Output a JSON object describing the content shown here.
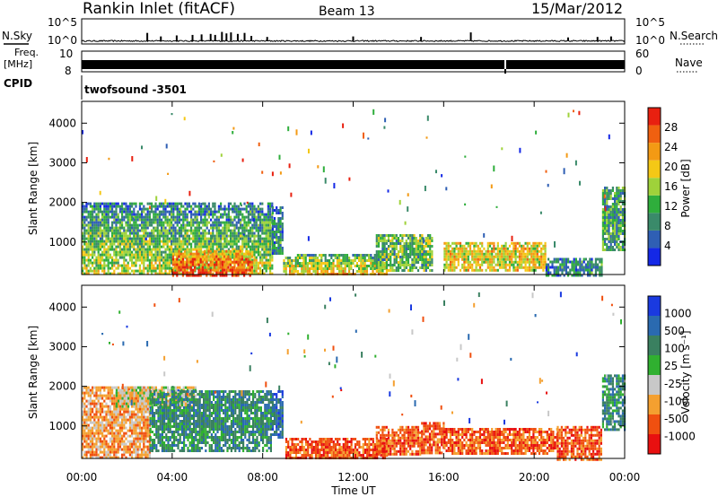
{
  "header": {
    "title": "Rankin Inlet (fitACF)",
    "beam": "Beam 13",
    "date": "15/Mar/2012"
  },
  "labels": {
    "nsky": "N.Sky",
    "nsearch": "N.Search",
    "freq_top": "Freq.",
    "freq_unit": "[MHz]",
    "nave": "Nave",
    "cpid": "CPID",
    "cpid_value": "twofsound  -3501",
    "x_axis_title": "Time UT"
  },
  "colors": {
    "power": [
      "#1428e6",
      "#2f5fb4",
      "#3a8a6a",
      "#2fae3c",
      "#9fd23a",
      "#f4c816",
      "#f39a14",
      "#f06010",
      "#e82010"
    ],
    "velocity": [
      "#e81010",
      "#f05010",
      "#f4a030",
      "#c8c8c8",
      "#30b030",
      "#3a8060",
      "#2a6ab0",
      "#1a3ae0"
    ]
  },
  "chart_data": [
    {
      "type": "line",
      "name": "sky-noise-panel",
      "left_axis": {
        "label": "N.Sky",
        "ticks": [
          "10^5",
          "10^0"
        ]
      },
      "right_axis": {
        "label": "N.Search",
        "ticks": [
          "10^5",
          "10^0"
        ]
      },
      "x_range_hours": [
        0,
        24
      ],
      "baseline_log10": 0.6,
      "spikes": [
        {
          "t": 2.9,
          "v": 1.6
        },
        {
          "t": 3.5,
          "v": 0.9
        },
        {
          "t": 4.2,
          "v": 1.1
        },
        {
          "t": 4.9,
          "v": 1.2
        },
        {
          "t": 5.3,
          "v": 1.3
        },
        {
          "t": 5.7,
          "v": 1.4
        },
        {
          "t": 5.9,
          "v": 1.2
        },
        {
          "t": 6.2,
          "v": 1.8
        },
        {
          "t": 6.4,
          "v": 1.5
        },
        {
          "t": 6.6,
          "v": 1.7
        },
        {
          "t": 6.9,
          "v": 1.4
        },
        {
          "t": 7.2,
          "v": 1.6
        },
        {
          "t": 7.5,
          "v": 1.0
        },
        {
          "t": 8.2,
          "v": 0.8
        },
        {
          "t": 12.0,
          "v": 0.9
        },
        {
          "t": 15.0,
          "v": 0.8
        },
        {
          "t": 17.2,
          "v": 1.7
        },
        {
          "t": 21.5,
          "v": 0.7
        },
        {
          "t": 22.8,
          "v": 0.8
        },
        {
          "t": 23.4,
          "v": 0.9
        }
      ]
    },
    {
      "type": "area",
      "name": "frequency-nave-panel",
      "left_axis": {
        "label": "Freq. [MHz]",
        "ticks": [
          "10",
          "8"
        ]
      },
      "right_axis": {
        "label": "Nave",
        "ticks": [
          "60",
          "0"
        ]
      },
      "x_range_hours": [
        0,
        24
      ],
      "frequency_mhz_band": [
        8.9,
        9.9
      ],
      "gaps_hours": [
        18.7
      ]
    },
    {
      "type": "heatmap",
      "name": "power-panel",
      "ylabel": "Slant Range [km]",
      "ylim": [
        180,
        4550
      ],
      "yticks": [
        1000,
        2000,
        3000,
        4000
      ],
      "x_range_hours": [
        0,
        24
      ],
      "colorbar": {
        "label": "Power [dB]",
        "ticks": [
          "4",
          "8",
          "12",
          "16",
          "20",
          "24",
          "28"
        ],
        "range": [
          0,
          30
        ]
      },
      "regions": [
        {
          "t": [
            0.0,
            8.4
          ],
          "r": [
            180,
            2000
          ],
          "mean": 12,
          "hot_low": true
        },
        {
          "t": [
            4.0,
            7.5
          ],
          "r": [
            180,
            800
          ],
          "mean": 24,
          "hot_low": true
        },
        {
          "t": [
            8.4,
            8.9
          ],
          "r": [
            700,
            1900
          ],
          "mean": 8
        },
        {
          "t": [
            8.9,
            13.5
          ],
          "r": [
            180,
            700
          ],
          "mean": 16,
          "hot_low": true
        },
        {
          "t": [
            13.0,
            15.5
          ],
          "r": [
            300,
            1200
          ],
          "mean": 12
        },
        {
          "t": [
            16.0,
            20.5
          ],
          "r": [
            300,
            1000
          ],
          "mean": 18
        },
        {
          "t": [
            20.5,
            23.0
          ],
          "r": [
            180,
            600
          ],
          "mean": 8
        },
        {
          "t": [
            23.0,
            24.0
          ],
          "r": [
            800,
            2400
          ],
          "mean": 10
        }
      ]
    },
    {
      "type": "heatmap",
      "name": "velocity-panel",
      "ylabel": "Slant Range [km]",
      "ylim": [
        180,
        4550
      ],
      "yticks": [
        1000,
        2000,
        3000,
        4000
      ],
      "x_range_hours": [
        0,
        24
      ],
      "xticks": [
        "00:00",
        "04:00",
        "08:00",
        "12:00",
        "16:00",
        "20:00",
        "00:00"
      ],
      "xlabel": "Time UT",
      "colorbar": {
        "label": "Velocity [m s⁻¹]",
        "ticks": [
          "-1000",
          "-500",
          "-100",
          "-25",
          "25",
          "100",
          "500",
          "1000"
        ]
      },
      "regions": [
        {
          "t": [
            0.0,
            3.0
          ],
          "r": [
            180,
            2000
          ],
          "mean_class": 2
        },
        {
          "t": [
            1.5,
            5.0
          ],
          "r": [
            1500,
            2000
          ],
          "mean_class": 3
        },
        {
          "t": [
            3.0,
            8.4
          ],
          "r": [
            400,
            1900
          ],
          "mean_class": 5
        },
        {
          "t": [
            8.4,
            8.9
          ],
          "r": [
            700,
            1900
          ],
          "mean_class": 6
        },
        {
          "t": [
            9.0,
            13.5
          ],
          "r": [
            180,
            700
          ],
          "mean_class": 1
        },
        {
          "t": [
            13.0,
            15.0
          ],
          "r": [
            300,
            1000
          ],
          "mean_class": 1
        },
        {
          "t": [
            15.0,
            16.0
          ],
          "r": [
            300,
            1100
          ],
          "mean_class": 1
        },
        {
          "t": [
            16.0,
            21.0
          ],
          "r": [
            300,
            950
          ],
          "mean_class": 1
        },
        {
          "t": [
            21.0,
            23.0
          ],
          "r": [
            180,
            1000
          ],
          "mean_class": 1
        },
        {
          "t": [
            23.0,
            24.0
          ],
          "r": [
            900,
            2300
          ],
          "mean_class": 5
        }
      ]
    }
  ]
}
